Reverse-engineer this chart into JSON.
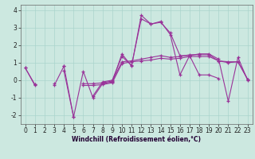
{
  "x": [
    0,
    1,
    2,
    3,
    4,
    5,
    6,
    7,
    8,
    9,
    10,
    11,
    12,
    13,
    14,
    15,
    16,
    17,
    18,
    19,
    20,
    21,
    22,
    23
  ],
  "line1": [
    0.7,
    -0.3,
    null,
    null,
    0.8,
    -2.1,
    0.5,
    -1.0,
    -0.2,
    -0.1,
    1.5,
    0.8,
    3.7,
    3.2,
    3.3,
    2.7,
    1.4,
    1.4,
    1.5,
    1.5,
    1.2,
    -1.2,
    1.3,
    0.0
  ],
  "line2": [
    null,
    null,
    null,
    null,
    0.55,
    -2.1,
    null,
    -0.9,
    -0.1,
    0.0,
    1.35,
    0.85,
    3.5,
    3.2,
    3.35,
    2.6,
    0.3,
    1.4,
    0.3,
    0.3,
    0.1,
    null,
    null,
    null
  ],
  "line3": [
    0.7,
    -0.25,
    null,
    -0.3,
    0.8,
    null,
    -0.3,
    -0.3,
    -0.25,
    -0.15,
    0.95,
    1.05,
    1.1,
    1.15,
    1.25,
    1.2,
    1.25,
    1.35,
    1.35,
    1.35,
    1.1,
    1.05,
    1.05,
    0.05
  ],
  "line4": [
    null,
    -0.25,
    null,
    -0.2,
    null,
    null,
    -0.2,
    -0.2,
    -0.15,
    -0.05,
    1.05,
    1.1,
    1.2,
    1.3,
    1.4,
    1.3,
    1.35,
    1.45,
    1.45,
    1.45,
    1.1,
    1.0,
    1.05,
    0.05
  ],
  "bg_color": "#cce8e0",
  "grid_color": "#aad4cc",
  "line_color": "#993399",
  "xlabel": "Windchill (Refroidissement éolien,°C)",
  "ylim": [
    -2.5,
    4.3
  ],
  "xlim": [
    -0.5,
    23.5
  ],
  "yticks": [
    -2,
    -1,
    0,
    1,
    2,
    3,
    4
  ],
  "xticks": [
    0,
    1,
    2,
    3,
    4,
    5,
    6,
    7,
    8,
    9,
    10,
    11,
    12,
    13,
    14,
    15,
    16,
    17,
    18,
    19,
    20,
    21,
    22,
    23
  ],
  "tick_fontsize": 5.5,
  "xlabel_fontsize": 5.5
}
